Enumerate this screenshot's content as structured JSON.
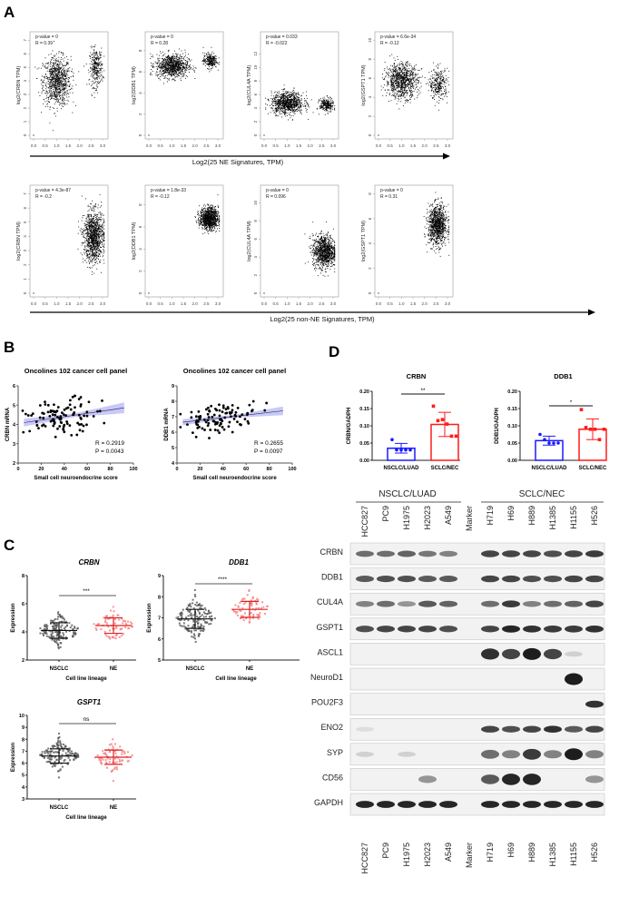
{
  "panels": {
    "A": "A",
    "B": "B",
    "C": "C",
    "D": "D"
  },
  "panel_A": {
    "top_axis_label": "Log2(25 NE Signatures, TPM)",
    "bottom_axis_label": "Log2(25 non-NE Signatures, TPM)"
  },
  "chart_data": [
    {
      "type": "scatter",
      "panel": "A",
      "ylabel": "log2(CRBN TPM)",
      "stats": [
        "p-value = 0",
        "R = 0.39"
      ],
      "xlim": [
        0,
        3
      ],
      "xticks": [
        "0.0",
        "0.5",
        "1.0",
        "1.5",
        "2.0",
        "2.5",
        "3.0"
      ],
      "ylim": [
        0,
        7
      ],
      "yticks": [
        0,
        1,
        2,
        3,
        4,
        5,
        6,
        7
      ],
      "clusters": [
        {
          "x": 1.0,
          "sx": 0.3,
          "y": 4.0,
          "sy": 0.9,
          "n": 900
        },
        {
          "x": 2.7,
          "sx": 0.14,
          "y": 5.0,
          "sy": 0.7,
          "n": 300
        }
      ]
    },
    {
      "type": "scatter",
      "panel": "A",
      "ylabel": "log2(DDB1 TPM)",
      "stats": [
        "p-value = 0",
        "R = 0.28"
      ],
      "xlim": [
        0,
        3
      ],
      "xticks": [
        "0.0",
        "0.5",
        "1.0",
        "1.5",
        "2.0",
        "2.5",
        "3.0"
      ],
      "ylim": [
        0,
        9
      ],
      "yticks": [
        0,
        2,
        4,
        6,
        8
      ],
      "clusters": [
        {
          "x": 1.0,
          "sx": 0.35,
          "y": 6.6,
          "sy": 0.55,
          "n": 900
        },
        {
          "x": 2.65,
          "sx": 0.15,
          "y": 7.1,
          "sy": 0.35,
          "n": 250
        }
      ]
    },
    {
      "type": "scatter",
      "panel": "A",
      "ylabel": "log2(CUL4A TPM)",
      "stats": [
        "p-value = 0.033",
        "R = -0.022"
      ],
      "xlim": [
        0,
        3
      ],
      "xticks": [
        "0.0",
        "0.5",
        "1.0",
        "1.5",
        "2.0",
        "2.5",
        "3.0"
      ],
      "ylim": [
        0,
        14
      ],
      "yticks": [
        0,
        2,
        4,
        6,
        8,
        10,
        12
      ],
      "clusters": [
        {
          "x": 1.0,
          "sx": 0.35,
          "y": 4.8,
          "sy": 0.8,
          "n": 900
        },
        {
          "x": 2.7,
          "sx": 0.15,
          "y": 4.5,
          "sy": 0.5,
          "n": 250
        }
      ]
    },
    {
      "type": "scatter",
      "panel": "A",
      "ylabel": "log2(GSPT1 TPM)",
      "stats": [
        "p-value = 6.6e-34",
        "R = -0.12"
      ],
      "xlim": [
        0,
        3
      ],
      "xticks": [
        "0.0",
        "0.5",
        "1.0",
        "1.5",
        "2.0",
        "2.5",
        "3.0"
      ],
      "ylim": [
        0,
        10
      ],
      "yticks": [
        0,
        2,
        4,
        6,
        8,
        10
      ],
      "clusters": [
        {
          "x": 1.0,
          "sx": 0.35,
          "y": 5.8,
          "sy": 0.9,
          "n": 900
        },
        {
          "x": 2.6,
          "sx": 0.2,
          "y": 5.4,
          "sy": 0.8,
          "n": 300
        }
      ]
    },
    {
      "type": "scatter",
      "panel": "A",
      "ylabel": "log2(CRBN TPM)",
      "stats": [
        "p-value = 4.3e-87",
        "R = -0.2"
      ],
      "xlim": [
        0,
        3
      ],
      "xticks": [
        "0.0",
        "0.5",
        "1.0",
        "1.5",
        "2.0",
        "2.5",
        "3.0"
      ],
      "ylim": [
        0,
        7
      ],
      "yticks": [
        0,
        1,
        2,
        3,
        4,
        5,
        6,
        7
      ],
      "clusters": [
        {
          "x": 2.6,
          "sx": 0.22,
          "y": 4.0,
          "sy": 0.9,
          "n": 1100
        }
      ]
    },
    {
      "type": "scatter",
      "panel": "A",
      "ylabel": "log2(DDB1 TPM)",
      "stats": [
        "p-value = 1.8e-33",
        "R = -0.12"
      ],
      "xlim": [
        0,
        3
      ],
      "xticks": [
        "0.0",
        "0.5",
        "1.0",
        "1.5",
        "2.0",
        "2.5",
        "3.0"
      ],
      "ylim": [
        0,
        9
      ],
      "yticks": [
        0,
        2,
        4,
        6,
        8
      ],
      "clusters": [
        {
          "x": 2.6,
          "sx": 0.2,
          "y": 6.8,
          "sy": 0.5,
          "n": 1000
        }
      ]
    },
    {
      "type": "scatter",
      "panel": "A",
      "ylabel": "log2(CUL4A TPM)",
      "stats": [
        "p-value = 0",
        "R = 0.096"
      ],
      "xlim": [
        0,
        3
      ],
      "xticks": [
        "0.0",
        "0.5",
        "1.0",
        "1.5",
        "2.0",
        "2.5",
        "3.0"
      ],
      "ylim": [
        0,
        11
      ],
      "yticks": [
        0,
        2,
        4,
        6,
        8,
        10
      ],
      "clusters": [
        {
          "x": 2.6,
          "sx": 0.25,
          "y": 4.7,
          "sy": 0.9,
          "n": 1000
        }
      ]
    },
    {
      "type": "scatter",
      "panel": "A",
      "ylabel": "log2(GSPT1 TPM)",
      "stats": [
        "p-value = 0",
        "R = 0.31"
      ],
      "xlim": [
        0,
        3
      ],
      "xticks": [
        "0.0",
        "0.5",
        "1.0",
        "1.5",
        "2.0",
        "2.5",
        "3.0"
      ],
      "ylim": [
        0,
        8
      ],
      "yticks": [
        0,
        2,
        4,
        6,
        8
      ],
      "clusters": [
        {
          "x": 2.55,
          "sx": 0.2,
          "y": 5.5,
          "sy": 0.8,
          "n": 1000
        }
      ]
    },
    {
      "type": "scatter",
      "panel": "B",
      "title": "Oncolines 102 cancer cell panel",
      "xlabel": "Small cell neuroendocrine score",
      "ylabel": "CRBN mRNA",
      "xlim": [
        0,
        100
      ],
      "xticks": [
        0,
        20,
        40,
        60,
        80,
        100
      ],
      "ylim": [
        2,
        6
      ],
      "yticks": [
        2,
        3,
        4,
        5,
        6
      ],
      "fit": {
        "intercept": 4.05,
        "slope": 0.0088
      },
      "n": 102,
      "sd": 0.45,
      "stats": [
        "R = 0.2919",
        "P = 0.0043"
      ]
    },
    {
      "type": "scatter",
      "panel": "B",
      "title": "Oncolines 102 cancer cell panel",
      "xlabel": "Small cell neuroendocrine score",
      "ylabel": "DDB1 mRNA",
      "xlim": [
        0,
        100
      ],
      "xticks": [
        0,
        20,
        40,
        60,
        80,
        100
      ],
      "ylim": [
        4,
        9
      ],
      "yticks": [
        4,
        5,
        6,
        7,
        8,
        9
      ],
      "fit": {
        "intercept": 6.6,
        "slope": 0.0085
      },
      "n": 102,
      "sd": 0.45,
      "stats": [
        "R = 0.2655",
        "P = 0.0097"
      ]
    },
    {
      "type": "scatter",
      "panel": "C",
      "title": "CRBN",
      "xlabel": "Cell line lineage",
      "ylabel": "Expression",
      "categories": [
        "NSCLC",
        "NE"
      ],
      "ylim": [
        2,
        8
      ],
      "yticks": [
        2,
        4,
        6,
        8
      ],
      "groups": [
        {
          "mean": 4.1,
          "sd": 0.55,
          "n": 150,
          "color": "#555555"
        },
        {
          "mean": 4.45,
          "sd": 0.55,
          "n": 70,
          "color": "#f47a7a"
        }
      ],
      "significance": "***"
    },
    {
      "type": "scatter",
      "panel": "C",
      "title": "DDB1",
      "xlabel": "Cell line lineage",
      "ylabel": "Expression",
      "categories": [
        "NSCLC",
        "NE"
      ],
      "ylim": [
        5,
        9
      ],
      "yticks": [
        5,
        6,
        7,
        8,
        9
      ],
      "groups": [
        {
          "mean": 6.95,
          "sd": 0.45,
          "n": 150,
          "color": "#555555"
        },
        {
          "mean": 7.4,
          "sd": 0.38,
          "n": 70,
          "color": "#f47a7a"
        }
      ],
      "significance": "****"
    },
    {
      "type": "scatter",
      "panel": "C",
      "title": "GSPT1",
      "xlabel": "Cell line lineage",
      "ylabel": "Expression",
      "categories": [
        "NSCLC",
        "NE"
      ],
      "ylim": [
        3,
        10
      ],
      "yticks": [
        3,
        4,
        5,
        6,
        7,
        8,
        9,
        10
      ],
      "groups": [
        {
          "mean": 6.6,
          "sd": 0.6,
          "n": 150,
          "color": "#555555"
        },
        {
          "mean": 6.5,
          "sd": 0.6,
          "n": 70,
          "color": "#f47a7a"
        }
      ],
      "significance": "ns"
    },
    {
      "type": "bar",
      "panel": "D",
      "title": "CRBN",
      "ylabel": "CRBN/GADPH",
      "categories": [
        "NSCLC/LUAD",
        "SCLC/NEC"
      ],
      "ylim": [
        0,
        0.2
      ],
      "yticks": [
        "0.00",
        "0.05",
        "0.10",
        "0.15",
        "0.20"
      ],
      "values": [
        0.035,
        0.104
      ],
      "sd": [
        0.014,
        0.035
      ],
      "points": [
        [
          0.06,
          0.03,
          0.03,
          0.03,
          0.03
        ],
        [
          0.157,
          0.115,
          0.118,
          0.105,
          0.07,
          0.07
        ]
      ],
      "colors": [
        "#1a1aff",
        "#ff1a1a"
      ],
      "significance": "**"
    },
    {
      "type": "bar",
      "panel": "D",
      "title": "DDB1",
      "ylabel": "DDB1/GADPH",
      "categories": [
        "NSCLC/LUAD",
        "SCLC/NEC"
      ],
      "ylim": [
        0,
        0.2
      ],
      "yticks": [
        "0.00",
        "0.05",
        "0.10",
        "0.15",
        "0.20"
      ],
      "values": [
        0.057,
        0.09
      ],
      "sd": [
        0.013,
        0.03
      ],
      "points": [
        [
          0.075,
          0.06,
          0.05,
          0.05,
          0.05
        ],
        [
          0.147,
          0.095,
          0.09,
          0.09,
          0.06,
          0.09
        ]
      ],
      "colors": [
        "#1a1aff",
        "#ff1a1a"
      ],
      "significance": "*"
    }
  ],
  "blot": {
    "groups": [
      "NSCLC/LUAD",
      "SCLC/NEC"
    ],
    "lanes": [
      "HCC827",
      "PC9",
      "H1975",
      "H2023",
      "A549",
      "Marker",
      "H719",
      "H69",
      "H889",
      "H1385",
      "H1155",
      "H526"
    ],
    "rows": [
      {
        "label": "CRBN",
        "intensity": [
          0.6,
          0.6,
          0.65,
          0.55,
          0.5,
          0,
          0.8,
          0.8,
          0.8,
          0.75,
          0.8,
          0.85
        ]
      },
      {
        "label": "DDB1",
        "intensity": [
          0.7,
          0.75,
          0.75,
          0.7,
          0.7,
          0,
          0.8,
          0.8,
          0.75,
          0.75,
          0.8,
          0.8
        ]
      },
      {
        "label": "CUL4A",
        "intensity": [
          0.5,
          0.6,
          0.4,
          0.7,
          0.65,
          0,
          0.6,
          0.85,
          0.5,
          0.6,
          0.65,
          0.8
        ]
      },
      {
        "label": "GSPT1",
        "intensity": [
          0.75,
          0.8,
          0.8,
          0.8,
          0.75,
          0,
          0.8,
          0.95,
          0.9,
          0.85,
          0.85,
          0.9
        ]
      },
      {
        "label": "ASCL1",
        "intensity": [
          0,
          0,
          0,
          0,
          0,
          0,
          0.9,
          0.8,
          1,
          0.8,
          0.1,
          0
        ]
      },
      {
        "label": "NeuroD1",
        "intensity": [
          0,
          0,
          0,
          0,
          0,
          0,
          0,
          0,
          0,
          0,
          1,
          0
        ]
      },
      {
        "label": "POU2F3",
        "intensity": [
          0,
          0,
          0,
          0,
          0,
          0,
          0,
          0,
          0,
          0,
          0,
          0.9
        ]
      },
      {
        "label": "ENO2",
        "intensity": [
          0.05,
          0,
          0,
          0,
          0,
          0,
          0.8,
          0.75,
          0.8,
          0.9,
          0.7,
          0.8
        ]
      },
      {
        "label": "SYP",
        "intensity": [
          0.1,
          0,
          0.1,
          0,
          0,
          0,
          0.6,
          0.5,
          0.85,
          0.5,
          1,
          0.5
        ]
      },
      {
        "label": "CD56",
        "intensity": [
          0,
          0,
          0,
          0.4,
          0,
          0,
          0.7,
          0.95,
          0.95,
          0,
          0,
          0.4
        ]
      },
      {
        "label": "GAPDH",
        "intensity": [
          0.95,
          0.95,
          0.95,
          0.95,
          0.95,
          0,
          0.95,
          0.95,
          0.95,
          0.95,
          0.95,
          0.95
        ]
      }
    ]
  }
}
